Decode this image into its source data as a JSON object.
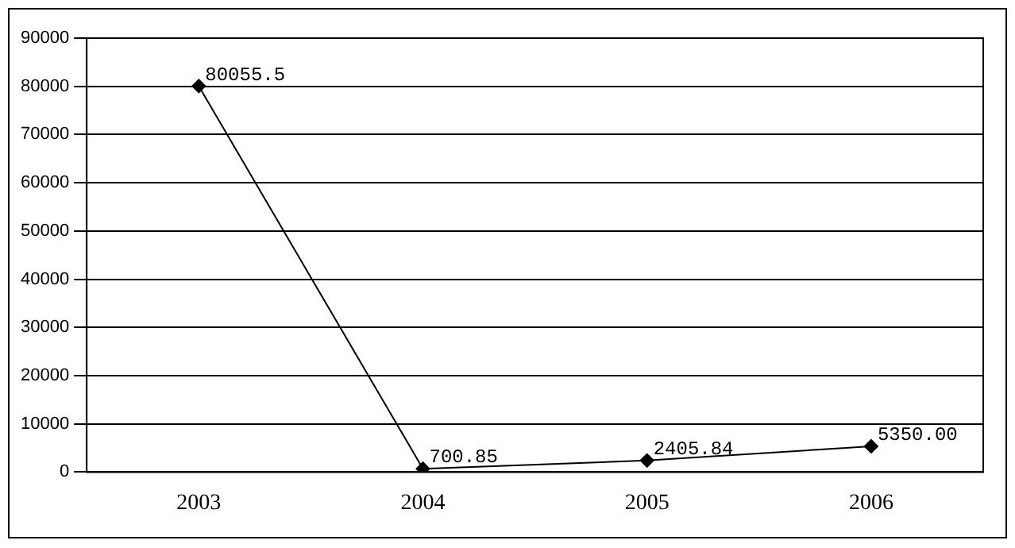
{
  "chart_data": {
    "type": "line",
    "categories": [
      "2003",
      "2004",
      "2005",
      "2006"
    ],
    "series": [
      {
        "color": "#000000",
        "values": [
          80055.5,
          700.85,
          2405.84,
          5350.0
        ],
        "value_labels": [
          "80055.5",
          "700.85",
          "2405.84",
          "5350.00"
        ]
      }
    ],
    "ylim": [
      0,
      90000
    ],
    "yticks": [
      0,
      10000,
      20000,
      30000,
      40000,
      50000,
      60000,
      70000,
      80000,
      90000
    ],
    "grid": "y",
    "legend": false,
    "marker": "diamond",
    "line_style": "solid"
  }
}
